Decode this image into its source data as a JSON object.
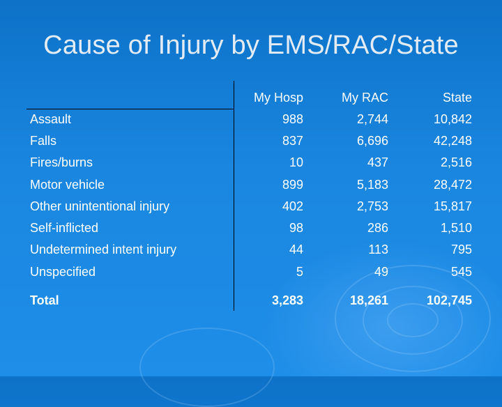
{
  "title": "Cause of Injury by EMS/RAC/State",
  "table": {
    "headers": [
      "My Hosp",
      "My RAC",
      "State"
    ],
    "rows": [
      {
        "label": "Assault",
        "values": [
          "988",
          "2,744",
          "10,842"
        ]
      },
      {
        "label": "Falls",
        "values": [
          "837",
          "6,696",
          "42,248"
        ]
      },
      {
        "label": "Fires/burns",
        "values": [
          "10",
          "437",
          "2,516"
        ]
      },
      {
        "label": "Motor vehicle",
        "values": [
          "899",
          "5,183",
          "28,472"
        ]
      },
      {
        "label": "Other unintentional injury",
        "values": [
          "402",
          "2,753",
          "15,817"
        ]
      },
      {
        "label": "Self-inflicted",
        "values": [
          "98",
          "286",
          "1,510"
        ]
      },
      {
        "label": "Undetermined intent injury",
        "values": [
          "44",
          "113",
          "795"
        ]
      },
      {
        "label": "Unspecified",
        "values": [
          "5",
          "49",
          "545"
        ]
      }
    ],
    "total": {
      "label": "Total",
      "values": [
        "3,283",
        "18,261",
        "102,745"
      ]
    }
  },
  "colors": {
    "background": "#1a86e0",
    "text": "#ffffff",
    "title": "#e3ecf6",
    "rule": "#000000"
  }
}
